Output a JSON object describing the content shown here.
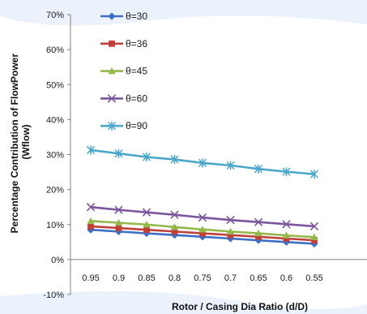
{
  "chart_data": {
    "type": "line",
    "title": "",
    "xlabel": "Rotor / Casing Dia Ratio (d/D)",
    "ylabel": [
      "Percentage Contribution of FlowPower",
      "(Wflow)"
    ],
    "categories": [
      "0.95",
      "0.9",
      "0.85",
      "0.8",
      "0.75",
      "0.7",
      "0.65",
      "0.6",
      "0.55"
    ],
    "ylim": [
      -10,
      70
    ],
    "yticks": [
      -10,
      0,
      10,
      20,
      30,
      40,
      50,
      60,
      70
    ],
    "ytick_labels": [
      "-10%",
      "0%",
      "10%",
      "20%",
      "30%",
      "40%",
      "50%",
      "60%",
      "70%"
    ],
    "grid": false,
    "legend_placement": "top-left",
    "series": [
      {
        "name": "θ=30",
        "marker": "diamond",
        "color": "#3d6fc4",
        "values": [
          8.5,
          8.0,
          7.5,
          7.0,
          6.5,
          6.0,
          5.5,
          5.0,
          4.5
        ]
      },
      {
        "name": "θ=36",
        "marker": "square",
        "color": "#c0403b",
        "values": [
          9.5,
          9.0,
          8.5,
          8.0,
          7.5,
          7.0,
          6.5,
          6.0,
          5.5
        ]
      },
      {
        "name": "θ=45",
        "marker": "triangle",
        "color": "#94b84a",
        "values": [
          11.0,
          10.5,
          10.0,
          9.3,
          8.6,
          8.0,
          7.5,
          6.9,
          6.4
        ]
      },
      {
        "name": "θ=60",
        "marker": "x",
        "color": "#7b559e",
        "values": [
          15.0,
          14.2,
          13.5,
          12.8,
          12.0,
          11.3,
          10.7,
          10.1,
          9.5
        ]
      },
      {
        "name": "θ=90",
        "marker": "star",
        "color": "#4aa7c9",
        "values": [
          31.3,
          30.3,
          29.3,
          28.6,
          27.6,
          26.9,
          25.9,
          25.1,
          24.4
        ]
      }
    ]
  }
}
